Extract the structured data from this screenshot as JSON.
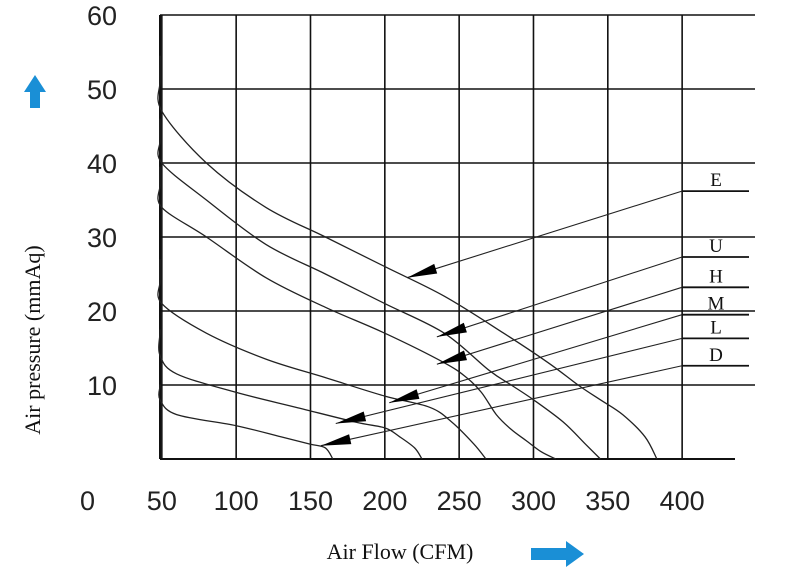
{
  "chart_data": {
    "type": "line",
    "xlabel": "Air Flow (CFM)",
    "ylabel": "Air pressure (mmAq)",
    "xlim": [
      0,
      400
    ],
    "ylim": [
      0,
      60
    ],
    "x_ticks": [
      "0",
      "50",
      "100",
      "150",
      "200",
      "250",
      "300",
      "350",
      "400"
    ],
    "y_ticks": [
      "10",
      "20",
      "30",
      "40",
      "50",
      "60"
    ],
    "grid": true,
    "accent_color": "#1a8fd6",
    "series": [
      {
        "name": "E",
        "x": [
          0,
          10,
          30,
          50,
          80,
          120,
          160,
          200,
          240,
          280,
          310,
          330,
          345,
          360,
          375,
          383
        ],
        "y": [
          54.5,
          54,
          51,
          47,
          40,
          34,
          30,
          26,
          22,
          17,
          13,
          10,
          8,
          6,
          3,
          0
        ]
      },
      {
        "name": "U",
        "x": [
          0,
          10,
          30,
          50,
          80,
          120,
          160,
          200,
          240,
          270,
          285,
          300,
          320,
          335,
          345
        ],
        "y": [
          46,
          45.5,
          43,
          40,
          35,
          29,
          25,
          21,
          17,
          12,
          10,
          8,
          5,
          2,
          0
        ]
      },
      {
        "name": "H",
        "x": [
          0,
          10,
          30,
          50,
          80,
          120,
          160,
          200,
          240,
          255,
          265,
          275,
          285,
          295,
          305,
          315
        ],
        "y": [
          39.5,
          39,
          37,
          34,
          30,
          24.5,
          20.5,
          17,
          13,
          11,
          9,
          6,
          4,
          2.5,
          1,
          0
        ]
      },
      {
        "name": "M",
        "x": [
          0,
          10,
          30,
          50,
          80,
          120,
          160,
          200,
          230,
          245,
          260,
          268
        ],
        "y": [
          27,
          26.5,
          24,
          21,
          17,
          13.5,
          11,
          8.5,
          7,
          5,
          2,
          0
        ]
      },
      {
        "name": "L",
        "x": [
          0,
          10,
          30,
          60,
          100,
          140,
          180,
          200,
          210,
          220,
          225
        ],
        "y": [
          17.5,
          17,
          14,
          11.5,
          9,
          7,
          5,
          4.2,
          3,
          1.5,
          0
        ]
      },
      {
        "name": "D",
        "x": [
          0,
          10,
          30,
          60,
          100,
          130,
          150,
          160,
          165
        ],
        "y": [
          10,
          9.8,
          8,
          6,
          4.5,
          3,
          2,
          1.5,
          0
        ]
      }
    ],
    "annotations": [
      {
        "label": "E",
        "line_y": 36.2,
        "arrow_to": [
          215,
          24.5
        ]
      },
      {
        "label": "U",
        "line_y": 27.3,
        "arrow_to": [
          235,
          16.5
        ]
      },
      {
        "label": "H",
        "line_y": 23.2,
        "arrow_to": [
          235,
          12.8
        ]
      },
      {
        "label": "M",
        "line_y": 19.5,
        "arrow_to": [
          203,
          7.6
        ]
      },
      {
        "label": "L",
        "line_y": 16.3,
        "arrow_to": [
          167,
          4.8
        ]
      },
      {
        "label": "D",
        "line_y": 12.6,
        "arrow_to": [
          157,
          1.8
        ]
      }
    ]
  }
}
